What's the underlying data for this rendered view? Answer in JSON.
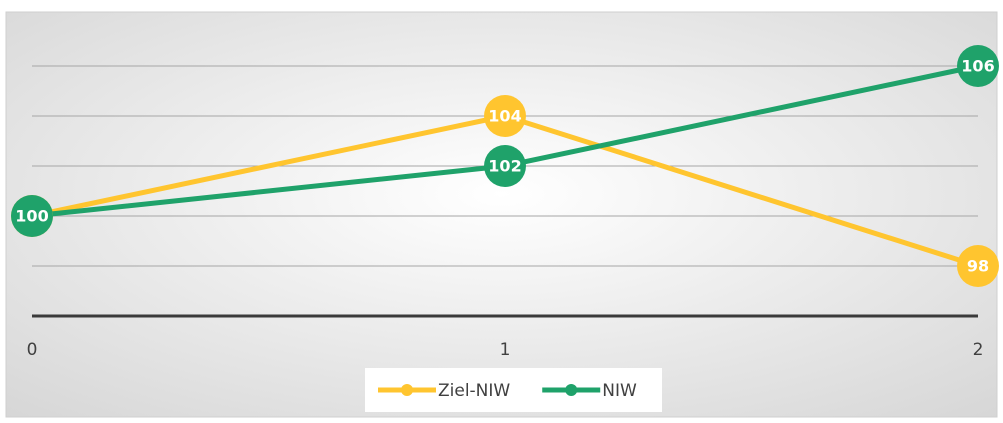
{
  "chart_data": {
    "type": "line",
    "categories": [
      "0",
      "1",
      "2"
    ],
    "series": [
      {
        "name": "Ziel-NIW",
        "color": "#ffc52f",
        "values": [
          100,
          104,
          98
        ]
      },
      {
        "name": "NIW",
        "color": "#1fa26a",
        "values": [
          100,
          102,
          106
        ]
      }
    ],
    "ylim": [
      96,
      106
    ],
    "yticks": [
      96,
      98,
      100,
      102,
      104,
      106
    ],
    "grid": true,
    "legend": "bottom"
  }
}
